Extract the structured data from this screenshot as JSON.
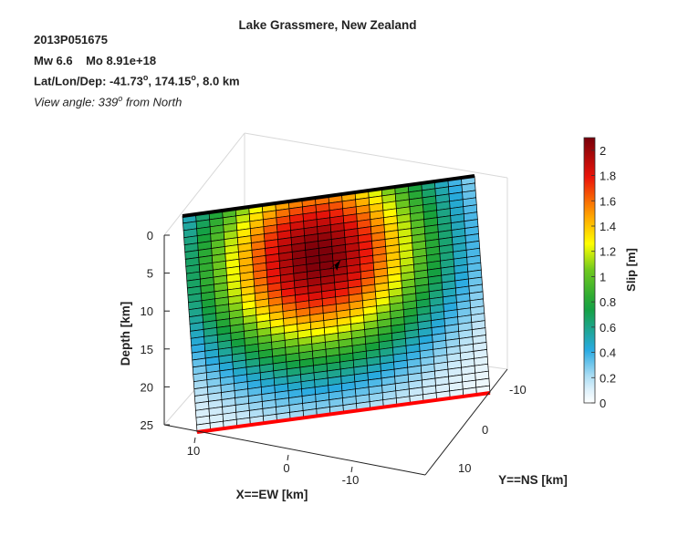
{
  "header": {
    "title": "Lake Grassmere, New Zealand",
    "event_id": "2013P051675",
    "mw": "Mw 6.6",
    "mo": "Mo 8.91e+18",
    "latlon_prefix": "Lat/Lon/Dep: -41.73",
    "deg": "o",
    "lon_value": ", 174.15",
    "depth_value": ", 8.0 km",
    "view_prefix": "View angle: 339",
    "view_suffix": " from North"
  },
  "chart_data": {
    "type": "heatmap",
    "title": "Lake Grassmere, New Zealand",
    "xlabel": "X==EW [km]",
    "ylabel": "Y==NS [km]",
    "zlabel": "Depth [km]",
    "colorbar_label": "Slip [m]",
    "x_ticks": [
      "10",
      "0",
      "-10"
    ],
    "y_ticks": [
      "-10",
      "0",
      "10"
    ],
    "z_ticks": [
      "0",
      "5",
      "10",
      "15",
      "20",
      "25"
    ],
    "colorbar_ticks": [
      "0",
      "0.2",
      "0.4",
      "0.6",
      "0.8",
      "1",
      "1.2",
      "1.4",
      "1.6",
      "1.8",
      "2"
    ],
    "colorbar_range": [
      0,
      2.1
    ],
    "grid": true,
    "fault_grid": {
      "cols": 22,
      "rows": 30
    },
    "peak_slip": 2.1,
    "peak_location": {
      "strike_fraction": 0.45,
      "dip_fraction": 0.27
    },
    "hypocenter": {
      "strike_fraction": 0.5,
      "dip_fraction": 0.32
    },
    "colors": {
      "top_edge": "#000000",
      "bottom_edge": "#ff0000",
      "hypocenter": "#000000"
    }
  }
}
